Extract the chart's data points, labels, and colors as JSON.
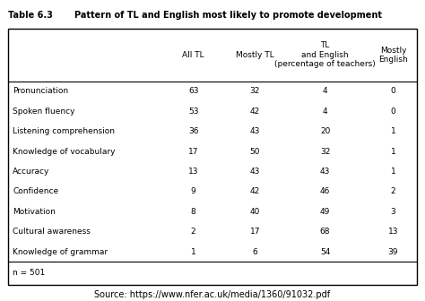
{
  "table_title": "Table 6.3",
  "table_subtitle": "Pattern of TL and English most likely to promote development",
  "col_headers": [
    "All TL",
    "Mostly TL",
    "TL\nand English\n(percentage of teachers)",
    "Mostly\nEnglish"
  ],
  "row_labels": [
    "Pronunciation",
    "Spoken fluency",
    "Listening comprehension",
    "Knowledge of vocabulary",
    "Accuracy",
    "Confidence",
    "Motivation",
    "Cultural awareness",
    "Knowledge of grammar"
  ],
  "data": [
    [
      63,
      32,
      4,
      0
    ],
    [
      53,
      42,
      4,
      0
    ],
    [
      36,
      43,
      20,
      1
    ],
    [
      17,
      50,
      32,
      1
    ],
    [
      13,
      43,
      43,
      1
    ],
    [
      9,
      42,
      46,
      2
    ],
    [
      8,
      40,
      49,
      3
    ],
    [
      2,
      17,
      68,
      13
    ],
    [
      1,
      6,
      54,
      39
    ]
  ],
  "footnote": "n = 501",
  "source": "Source: https://www.nfer.ac.uk/media/1360/91032.pdf",
  "fig_bg_color": "#ffffff",
  "table_bg_color": "#ffffff",
  "title_fontsize": 7.0,
  "cell_fontsize": 6.5,
  "source_fontsize": 7.0
}
